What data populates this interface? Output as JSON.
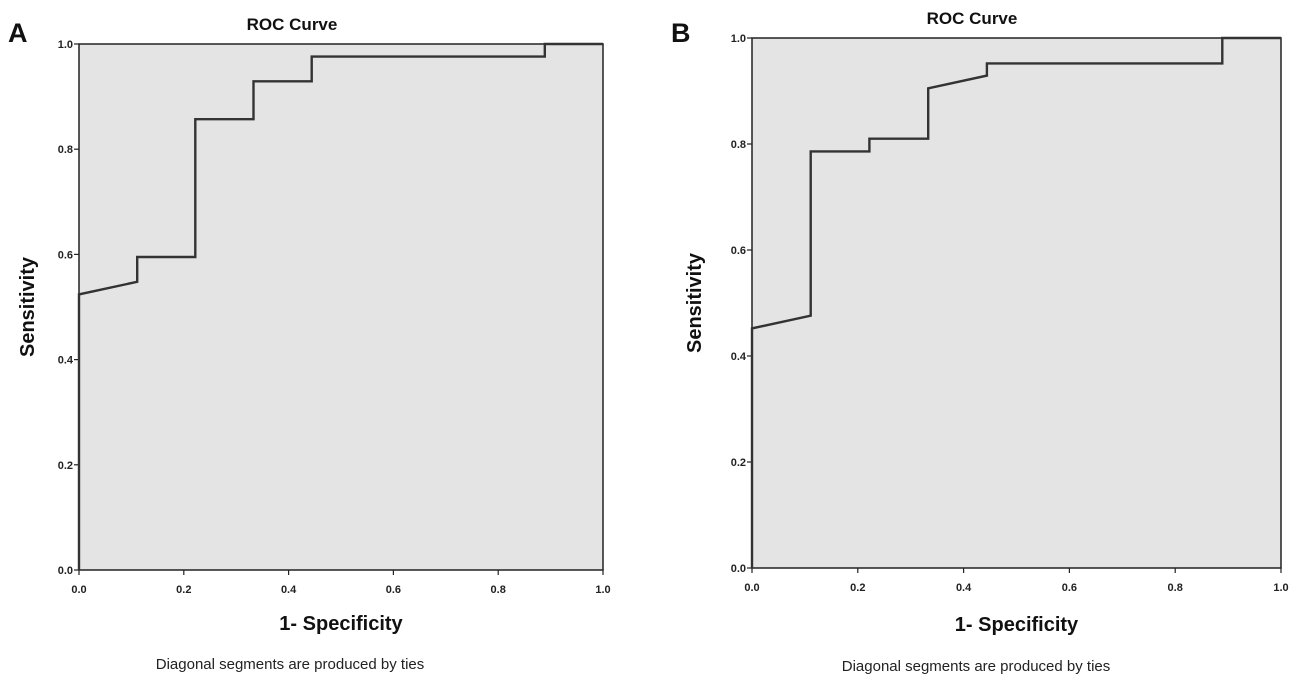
{
  "chart_data": [
    {
      "type": "line",
      "panel_label": "A",
      "title": "ROC Curve",
      "xlabel": "1- Specificity",
      "ylabel": "Sensitivity",
      "footnote": "Diagonal segments are produced by ties",
      "xlim": [
        0.0,
        1.0
      ],
      "ylim": [
        0.0,
        1.0
      ],
      "xticks": [
        "0.0",
        "0.2",
        "0.4",
        "0.6",
        "0.8",
        "1.0"
      ],
      "yticks": [
        "0.0",
        "0.2",
        "0.4",
        "0.6",
        "0.8",
        "1.0"
      ],
      "grid": false,
      "series": [
        {
          "x": [
            0.0,
            0.0,
            0.111,
            0.111,
            0.222,
            0.222,
            0.333,
            0.333,
            0.444,
            0.444,
            0.889,
            0.889,
            1.0
          ],
          "y": [
            0.0,
            0.524,
            0.548,
            0.595,
            0.595,
            0.857,
            0.857,
            0.929,
            0.929,
            0.976,
            0.976,
            1.0,
            1.0
          ]
        }
      ]
    },
    {
      "type": "line",
      "panel_label": "B",
      "title": "ROC Curve",
      "xlabel": "1- Specificity",
      "ylabel": "Sensitivity",
      "footnote": "Diagonal segments are produced by ties",
      "xlim": [
        0.0,
        1.0
      ],
      "ylim": [
        0.0,
        1.0
      ],
      "xticks": [
        "0.0",
        "0.2",
        "0.4",
        "0.6",
        "0.8",
        "1.0"
      ],
      "yticks": [
        "0.0",
        "0.2",
        "0.4",
        "0.6",
        "0.8",
        "1.0"
      ],
      "grid": false,
      "series": [
        {
          "x": [
            0.0,
            0.0,
            0.111,
            0.111,
            0.222,
            0.222,
            0.333,
            0.333,
            0.444,
            0.444,
            0.889,
            0.889,
            1.0
          ],
          "y": [
            0.0,
            0.452,
            0.476,
            0.786,
            0.786,
            0.81,
            0.81,
            0.905,
            0.929,
            0.952,
            0.952,
            1.0,
            1.0
          ]
        }
      ]
    }
  ]
}
